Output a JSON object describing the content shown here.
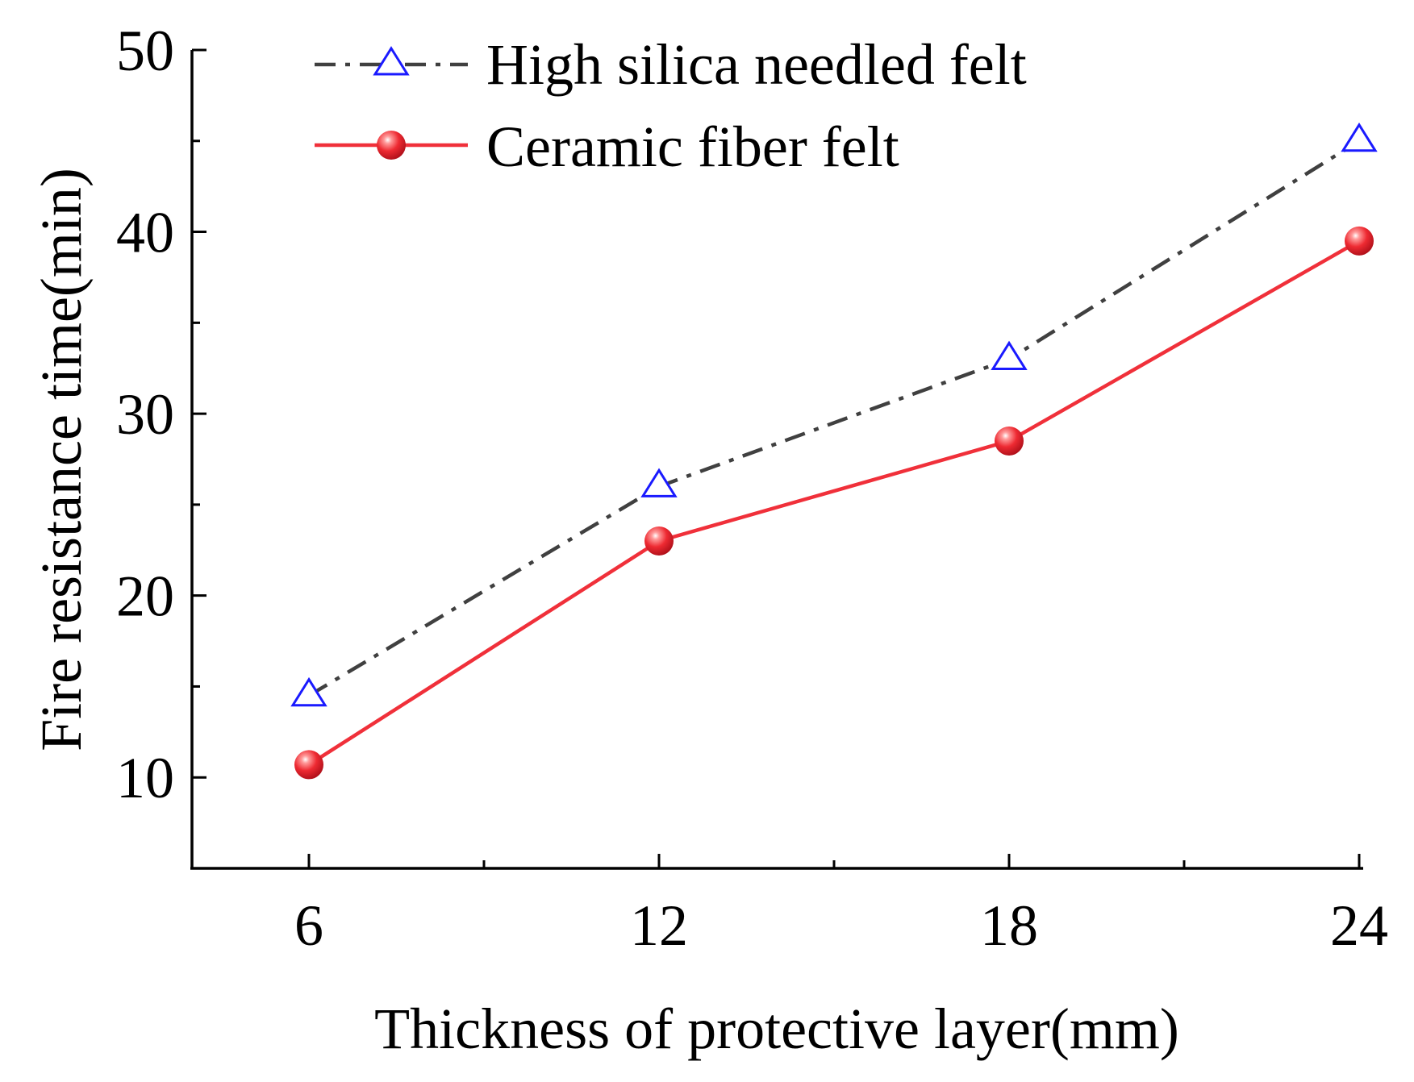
{
  "chart_data": {
    "type": "line",
    "title": "",
    "xlabel": "Thickness of protective layer(mm)",
    "ylabel": "Fire resistance time(min)",
    "x": [
      6,
      12,
      18,
      24
    ],
    "x_tick_labels": [
      "6",
      "12",
      "18",
      "24"
    ],
    "y_tick_labels": [
      "10",
      "20",
      "30",
      "40",
      "50"
    ],
    "xlim": [
      4,
      24.2
    ],
    "ylim": [
      5,
      50
    ],
    "grid": false,
    "legend_position": "top-left",
    "series": [
      {
        "name": "High silica needled felt",
        "values": [
          14.5,
          26,
          33,
          45
        ],
        "line_color": "#404040",
        "line_style": "dash-dot",
        "marker": "open-triangle",
        "marker_color": "#1a1aff"
      },
      {
        "name": "Ceramic fiber felt",
        "values": [
          10.7,
          23,
          28.5,
          39.5
        ],
        "line_color": "#f0303a",
        "line_style": "solid",
        "marker": "filled-sphere",
        "marker_color": "#e8202c"
      }
    ]
  }
}
